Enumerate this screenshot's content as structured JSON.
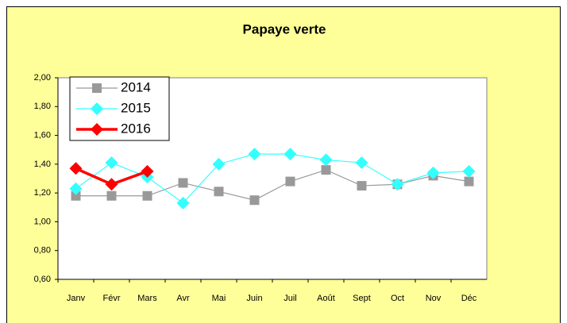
{
  "chart_data": {
    "type": "line",
    "title": "Papaye verte",
    "categories": [
      "Janv",
      "Févr",
      "Mars",
      "Avr",
      "Mai",
      "Juin",
      "Juil",
      "Août",
      "Sept",
      "Oct",
      "Nov",
      "Déc"
    ],
    "series": [
      {
        "name": "2014",
        "color": "#999999",
        "marker": "square",
        "values": [
          1.18,
          1.18,
          1.18,
          1.27,
          1.21,
          1.15,
          1.28,
          1.36,
          1.25,
          1.26,
          1.32,
          1.28
        ]
      },
      {
        "name": "2015",
        "color": "#33FFFF",
        "marker": "diamond",
        "values": [
          1.23,
          1.41,
          1.31,
          1.13,
          1.4,
          1.47,
          1.47,
          1.43,
          1.41,
          1.26,
          1.34,
          1.35
        ]
      },
      {
        "name": "2016",
        "color": "#FF0000",
        "marker": "diamond",
        "values": [
          1.37,
          1.26,
          1.35,
          null,
          null,
          null,
          null,
          null,
          null,
          null,
          null,
          null
        ]
      }
    ],
    "ylim": [
      0.6,
      2.0
    ],
    "yticks": [
      {
        "value": 0.6,
        "label": "0,60"
      },
      {
        "value": 0.8,
        "label": "0,80"
      },
      {
        "value": 1.0,
        "label": "1,00"
      },
      {
        "value": 1.2,
        "label": "1,20"
      },
      {
        "value": 1.4,
        "label": "1,40"
      },
      {
        "value": 1.6,
        "label": "1,60"
      },
      {
        "value": 1.8,
        "label": "1,80"
      },
      {
        "value": 2.0,
        "label": "2,00"
      }
    ],
    "legend": "upper left"
  }
}
